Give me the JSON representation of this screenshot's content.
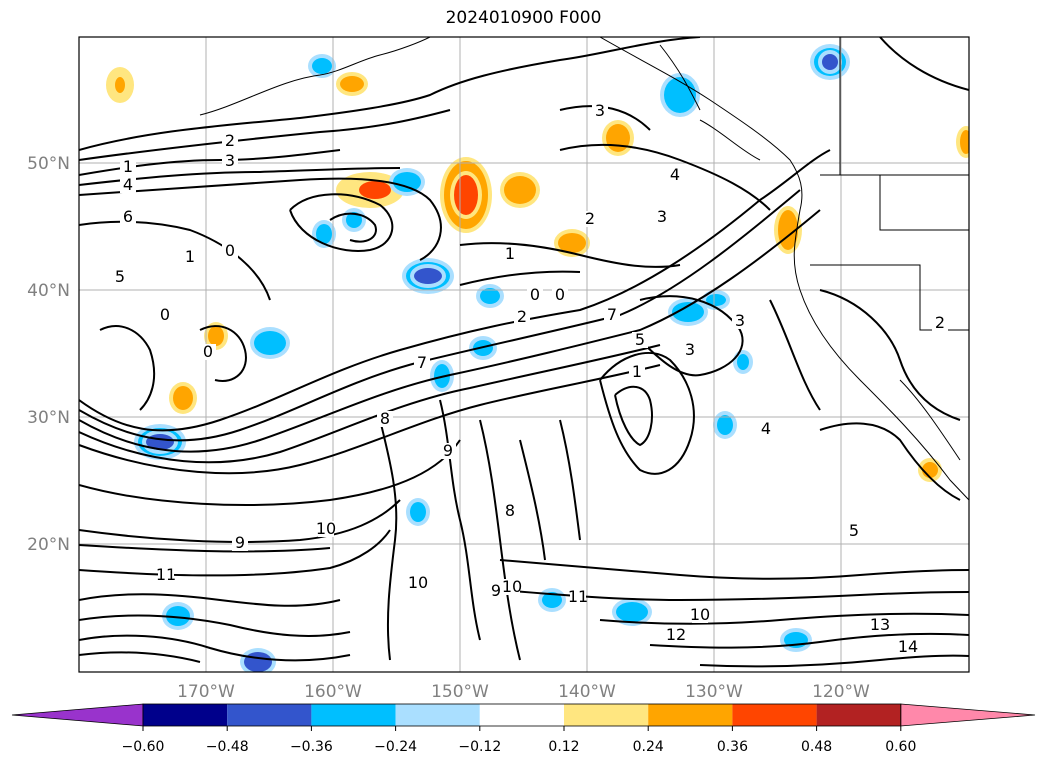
{
  "title": "2024010900 F000",
  "map": {
    "lat_labels": [
      "50°N",
      "40°N",
      "30°N",
      "20°N"
    ],
    "lon_labels": [
      "170°W",
      "160°W",
      "150°W",
      "140°W",
      "130°W",
      "120°W"
    ],
    "contour_labels": [
      "2",
      "3",
      "1",
      "4",
      "6",
      "0",
      "5",
      "1",
      "0",
      "0",
      "0",
      "2",
      "1",
      "0",
      "2",
      "7",
      "7",
      "5",
      "3",
      "1",
      "3",
      "3",
      "4",
      "8",
      "9",
      "10",
      "11",
      "8",
      "9",
      "10",
      "9",
      "10",
      "11",
      "12",
      "10",
      "13",
      "14",
      "5",
      "4",
      "3",
      "2"
    ],
    "gridlines": true,
    "coastlines": true
  },
  "colorbar": {
    "ticks": [
      "−0.60",
      "−0.48",
      "−0.36",
      "−0.24",
      "−0.12",
      "0.12",
      "0.24",
      "0.36",
      "0.48",
      "0.60"
    ],
    "colors": [
      "#9933cc",
      "#00008b",
      "#3355cc",
      "#00bfff",
      "#aadfff",
      "#ffffff",
      "#ffe680",
      "#ffa500",
      "#ff4500",
      "#b22222",
      "#ff88aa"
    ]
  },
  "shading_colors": {
    "light_blue": "#aadfff",
    "blue": "#00bfff",
    "mid_blue": "#3355cc",
    "yellow": "#ffe680",
    "orange": "#ffa500",
    "red": "#ff4500"
  }
}
